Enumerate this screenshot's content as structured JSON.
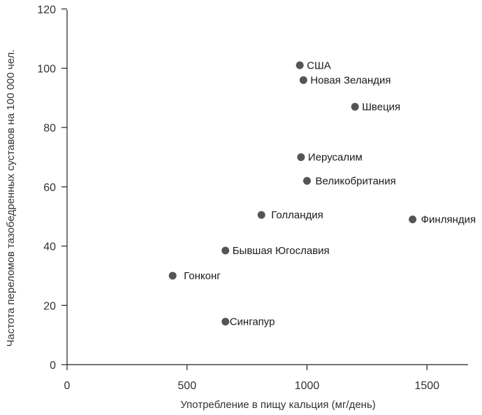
{
  "chart_data": {
    "type": "scatter",
    "xlabel": "Употребление в пищу кальция (мг/день)",
    "ylabel": "Частота переломов тазобедренных суставов на 100 000 чел.",
    "xlim": [
      0,
      1680
    ],
    "ylim": [
      0,
      120
    ],
    "x_ticks": [
      0,
      500,
      1000,
      1500
    ],
    "y_ticks": [
      0,
      20,
      40,
      60,
      80,
      100,
      120
    ],
    "grid": false,
    "point_color": "#555555",
    "points": [
      {
        "label": "США",
        "x": 970,
        "y": 101
      },
      {
        "label": "Новая Зеландия",
        "x": 985,
        "y": 96
      },
      {
        "label": "Швеция",
        "x": 1200,
        "y": 87
      },
      {
        "label": "Иерусалим",
        "x": 975,
        "y": 70
      },
      {
        "label": "Великобритания",
        "x": 1000,
        "y": 62
      },
      {
        "label": "Голландия",
        "x": 810,
        "y": 50.5
      },
      {
        "label": "Финляндия",
        "x": 1440,
        "y": 49
      },
      {
        "label": "Бывшая Югославия",
        "x": 660,
        "y": 38.5
      },
      {
        "label": "Гонконг",
        "x": 440,
        "y": 30
      },
      {
        "label": "Сингапур",
        "x": 660,
        "y": 14.5
      }
    ]
  }
}
